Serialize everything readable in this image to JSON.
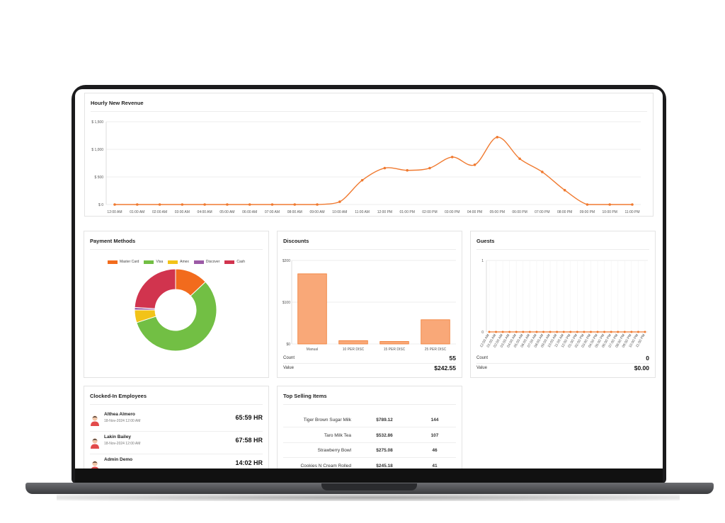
{
  "hourly": {
    "title": "Hourly New Revenue",
    "chart_data": {
      "type": "line",
      "x": [
        "12:00 AM",
        "01:00 AM",
        "02:00 AM",
        "03:00 AM",
        "04:00 AM",
        "05:00 AM",
        "06:00 AM",
        "07:00 AM",
        "08:00 AM",
        "09:00 AM",
        "10:00 AM",
        "11:00 AM",
        "12:00 PM",
        "01:00 PM",
        "02:00 PM",
        "03:00 PM",
        "04:00 PM",
        "05:00 PM",
        "06:00 PM",
        "07:00 PM",
        "08:00 PM",
        "09:00 PM",
        "10:00 PM",
        "11:00 PM"
      ],
      "values": [
        0,
        0,
        0,
        0,
        0,
        0,
        0,
        0,
        0,
        0,
        50,
        440,
        660,
        620,
        660,
        860,
        720,
        1220,
        830,
        590,
        260,
        0,
        0,
        0
      ],
      "yticks": [
        "$ 0",
        "$ 500",
        "$ 1,000",
        "$ 1,500"
      ],
      "ylim": [
        0,
        1500
      ],
      "color": "#f07a30"
    }
  },
  "payment": {
    "title": "Payment Methods",
    "legend": [
      {
        "label": "Master Card",
        "color": "#f26b1d"
      },
      {
        "label": "Visa",
        "color": "#72bf44"
      },
      {
        "label": "Amex",
        "color": "#f2c318"
      },
      {
        "label": "Discover",
        "color": "#9c5aa6"
      },
      {
        "label": "Cash",
        "color": "#d1344e"
      }
    ],
    "chart_data": {
      "type": "pie",
      "categories": [
        "Master Card",
        "Visa",
        "Amex",
        "Discover",
        "Cash"
      ],
      "values": [
        13,
        57,
        5,
        1,
        24
      ]
    }
  },
  "discounts": {
    "title": "Discounts",
    "chart_data": {
      "type": "bar",
      "categories": [
        "Manual",
        "10 PER DISC",
        "15 PER DISC",
        "25 PER DISC"
      ],
      "values": [
        168,
        8,
        6,
        58
      ],
      "yticks": [
        "$0",
        "$100",
        "$200"
      ],
      "ylim": [
        0,
        200
      ]
    },
    "count_label": "Count",
    "count_value": "55",
    "value_label": "Value",
    "value_value": "$242.55"
  },
  "guests": {
    "title": "Guests",
    "chart_data": {
      "type": "line",
      "x": [
        "12:00 AM",
        "01:00 AM",
        "02:00 AM",
        "03:00 AM",
        "04:00 AM",
        "05:00 AM",
        "06:00 AM",
        "07:00 AM",
        "08:00 AM",
        "09:00 AM",
        "10:00 AM",
        "11:00 AM",
        "12:00 PM",
        "01:00 PM",
        "02:00 PM",
        "03:00 PM",
        "04:00 PM",
        "05:00 PM",
        "06:00 PM",
        "07:00 PM",
        "08:00 PM",
        "09:00 PM",
        "10:00 PM",
        "11:00 PM"
      ],
      "values": [
        0,
        0,
        0,
        0,
        0,
        0,
        0,
        0,
        0,
        0,
        0,
        0,
        0,
        0,
        0,
        0,
        0,
        0,
        0,
        0,
        0,
        0,
        0,
        0
      ],
      "yticks": [
        "0",
        "1"
      ],
      "ylim": [
        0,
        1
      ]
    },
    "count_label": "Count",
    "count_value": "0",
    "value_label": "Value",
    "value_value": "$0.00"
  },
  "employees": {
    "title": "Clocked-In Employees",
    "items": [
      {
        "name": "Althea Almero",
        "date": "18-Nov-2024 12:00 AM",
        "hours": "65:59 HR"
      },
      {
        "name": "Lakin Bailey",
        "date": "18-Nov-2024 12:00 AM",
        "hours": "67:58 HR"
      },
      {
        "name": "Admin Demo",
        "date": "",
        "hours": "14:02 HR"
      }
    ]
  },
  "top_selling": {
    "title": "Top Selling Items",
    "rows": [
      {
        "item": "Tiger Brown Sugar Milk",
        "amount": "$789.12",
        "qty": "144"
      },
      {
        "item": "Taro Milk Tea",
        "amount": "$532.86",
        "qty": "107"
      },
      {
        "item": "Strawberry Bowl",
        "amount": "$275.08",
        "qty": "46"
      },
      {
        "item": "Cookies N Cream Rolled",
        "amount": "$245.18",
        "qty": "41"
      }
    ]
  }
}
